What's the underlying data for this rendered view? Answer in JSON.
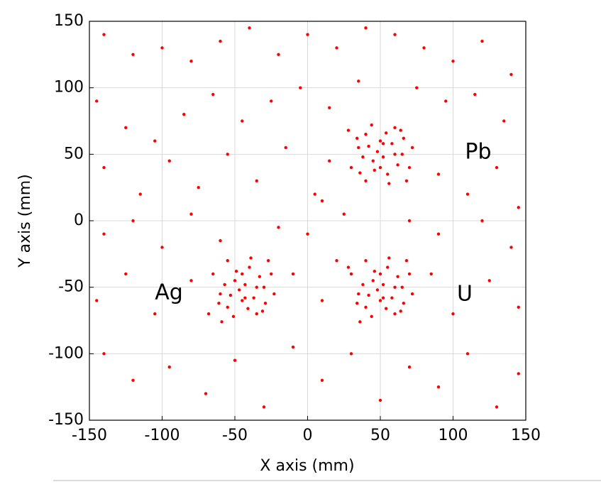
{
  "chart_data": {
    "type": "scatter",
    "xlabel": "X axis (mm)",
    "ylabel": "Y axis (mm)",
    "annotations": [
      "Pb",
      "Ag",
      "U"
    ],
    "color": "#ff0000",
    "xlim": [
      -150,
      150
    ],
    "ylim": [
      -150,
      150
    ],
    "xticks": [
      -150,
      -100,
      -50,
      0,
      50,
      100,
      150
    ],
    "yticks": [
      -150,
      -100,
      -50,
      0,
      50,
      100,
      150
    ],
    "grid": true,
    "x": [
      -140,
      -120,
      -100,
      -80,
      -60,
      -40,
      -20,
      0,
      20,
      40,
      60,
      80,
      100,
      120,
      140,
      -145,
      -125,
      -105,
      -85,
      -65,
      -45,
      -25,
      -5,
      15,
      35,
      75,
      95,
      115,
      135,
      -140,
      -115,
      -95,
      -75,
      -55,
      -35,
      -15,
      5,
      15,
      90,
      110,
      130,
      145,
      -140,
      -120,
      -100,
      -80,
      -60,
      -20,
      0,
      10,
      25,
      70,
      90,
      120,
      140,
      -145,
      -125,
      -105,
      -80,
      -10,
      10,
      20,
      85,
      100,
      125,
      145,
      -140,
      -120,
      -95,
      -70,
      -50,
      -30,
      -10,
      10,
      30,
      50,
      70,
      90,
      110,
      130,
      145,
      30,
      35,
      40,
      45,
      50,
      55,
      60,
      65,
      70,
      40,
      48,
      52,
      58,
      62,
      38,
      44,
      56,
      66,
      34,
      72,
      46,
      54,
      60,
      42,
      50,
      28,
      68,
      36,
      64,
      52,
      30,
      35,
      40,
      45,
      50,
      55,
      60,
      65,
      70,
      40,
      48,
      52,
      58,
      62,
      38,
      44,
      56,
      66,
      34,
      72,
      46,
      54,
      60,
      42,
      50,
      28,
      68,
      36,
      64,
      52,
      -65,
      -60,
      -55,
      -50,
      -45,
      -40,
      -35,
      -30,
      -25,
      -55,
      -47,
      -43,
      -37,
      -33,
      -57,
      -51,
      -39,
      -29,
      -61,
      -23,
      -49,
      -41,
      -35,
      -53,
      -45,
      -68,
      -27,
      -59,
      -31,
      -43
    ],
    "values": [
      140,
      125,
      130,
      120,
      135,
      145,
      125,
      140,
      130,
      145,
      140,
      130,
      120,
      135,
      110,
      90,
      70,
      60,
      80,
      95,
      75,
      90,
      100,
      85,
      105,
      100,
      90,
      95,
      75,
      40,
      20,
      45,
      25,
      50,
      30,
      55,
      20,
      45,
      35,
      20,
      40,
      10,
      -10,
      0,
      -20,
      5,
      -15,
      -5,
      -10,
      15,
      5,
      0,
      -10,
      0,
      -20,
      -60,
      -40,
      -70,
      -45,
      -40,
      -60,
      -30,
      -40,
      -70,
      -45,
      -65,
      -100,
      -120,
      -110,
      -130,
      -105,
      -140,
      -95,
      -120,
      -100,
      -135,
      -110,
      -125,
      -100,
      -140,
      -115,
      40,
      55,
      65,
      45,
      60,
      35,
      70,
      50,
      40,
      30,
      52,
      48,
      58,
      42,
      48,
      72,
      28,
      62,
      62,
      55,
      38,
      66,
      50,
      56,
      40,
      68,
      30,
      36,
      68,
      58,
      -40,
      -55,
      -65,
      -45,
      -60,
      -35,
      -70,
      -50,
      -40,
      -30,
      -52,
      -48,
      -58,
      -42,
      -48,
      -72,
      -28,
      -62,
      -62,
      -55,
      -38,
      -66,
      -50,
      -56,
      -40,
      -35,
      -30,
      -76,
      -68,
      -58,
      -40,
      -55,
      -65,
      -45,
      -60,
      -35,
      -70,
      -50,
      -40,
      -30,
      -52,
      -48,
      -58,
      -42,
      -48,
      -72,
      -28,
      -62,
      -62,
      -55,
      -38,
      -66,
      -50,
      -56,
      -40,
      -70,
      -30,
      -76,
      -68,
      -58
    ]
  }
}
